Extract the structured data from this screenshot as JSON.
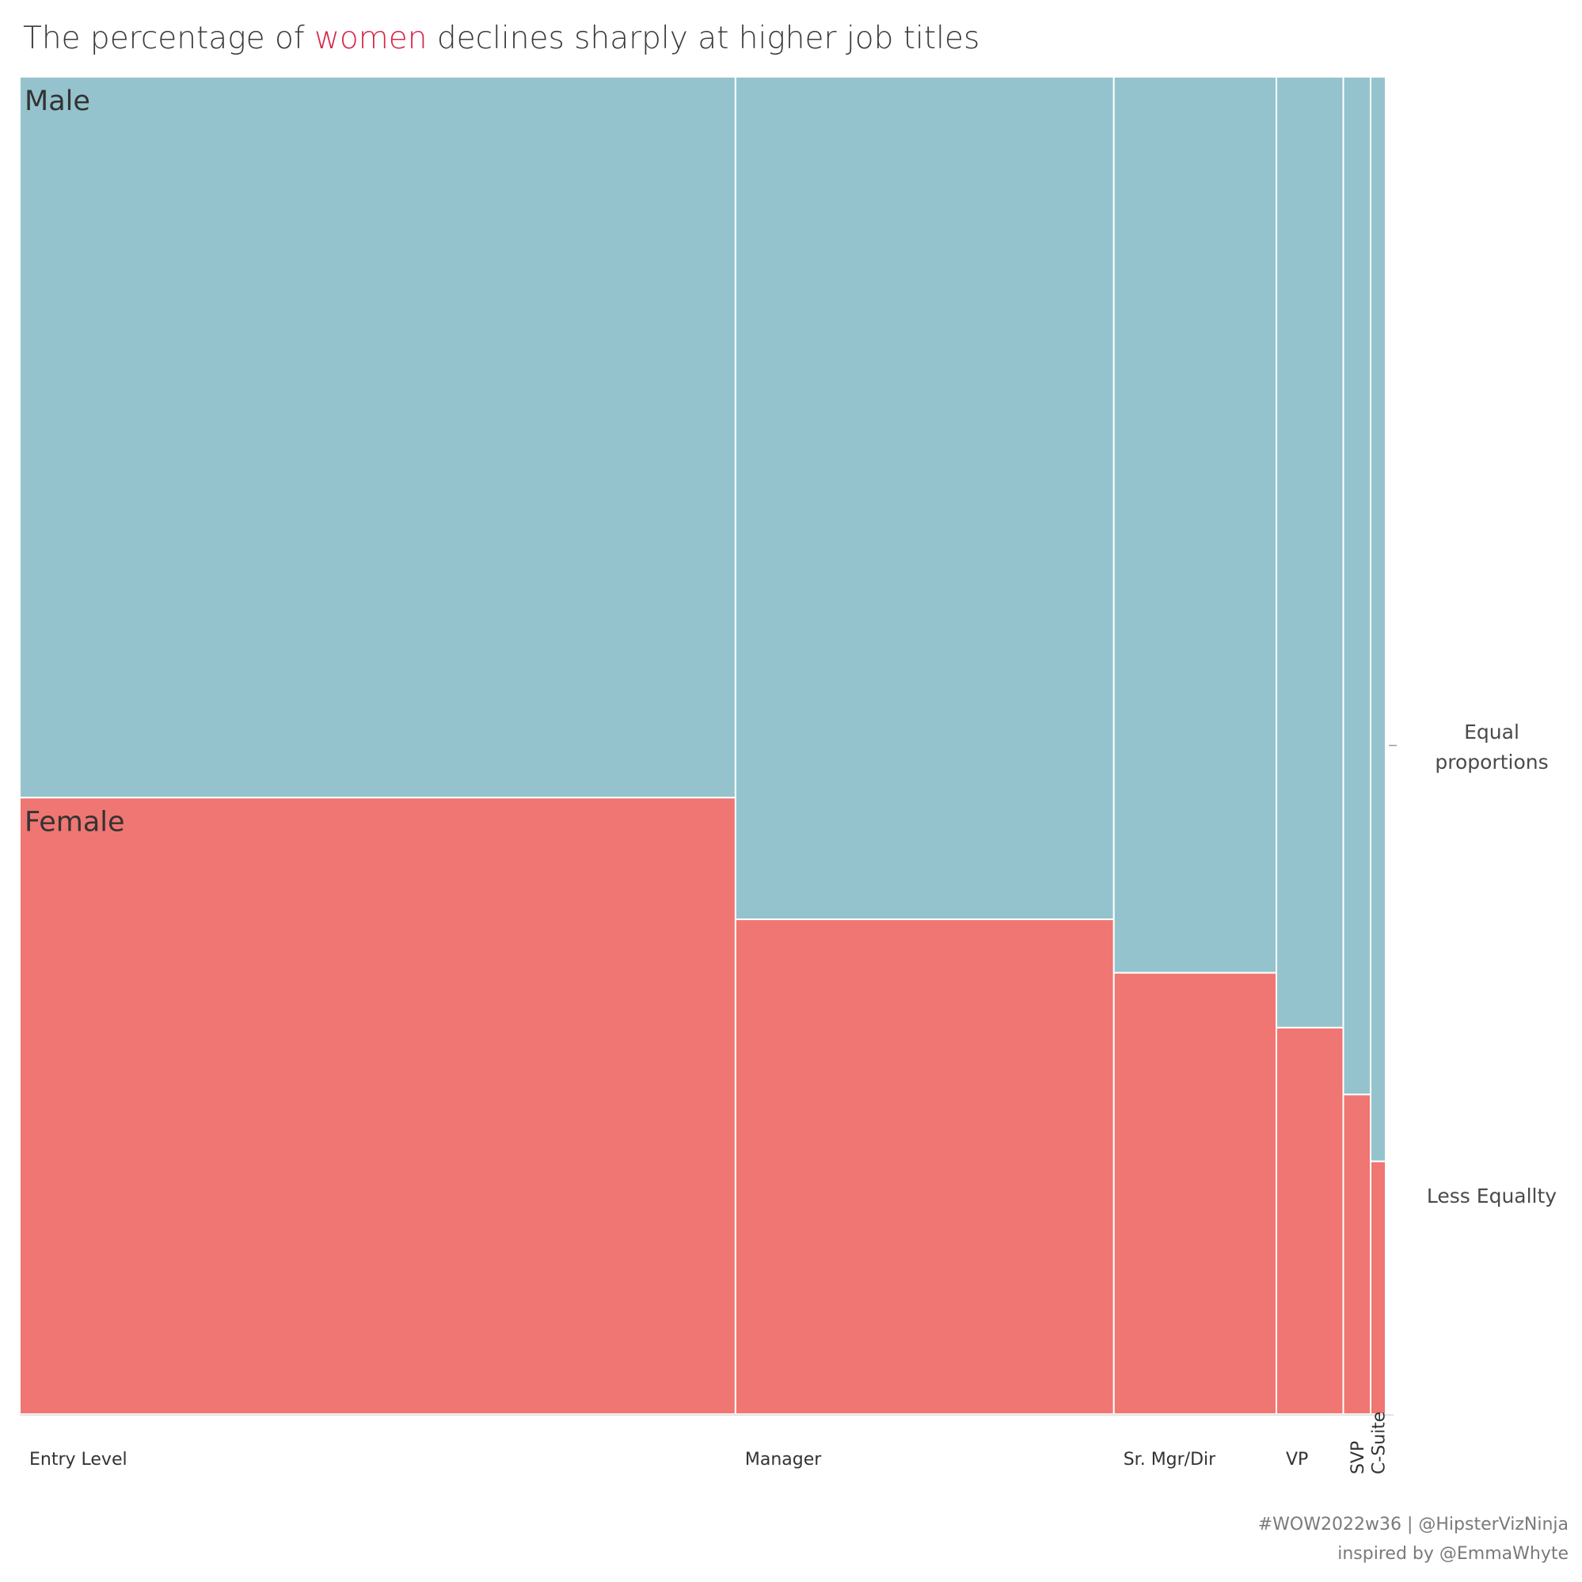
{
  "title": {
    "prefix": "The percentage of ",
    "highlight": "women",
    "suffix": " declines sharply at higher job titles"
  },
  "chart_data": {
    "type": "mosaic",
    "categories": [
      "Entry Level",
      "Manager",
      "Sr. Mgr/Dir",
      "VP",
      "SVP",
      "C-Suite"
    ],
    "category_weights": [
      52.4,
      27.7,
      11.9,
      4.9,
      2.0,
      1.1
    ],
    "series": [
      {
        "name": "Male",
        "values": [
          53.9,
          63.0,
          67.0,
          71.1,
          76.1,
          81.1
        ],
        "color": "#94c3cd"
      },
      {
        "name": "Female",
        "values": [
          46.1,
          37.0,
          33.0,
          28.9,
          23.9,
          18.9
        ],
        "color": "#ef7672"
      }
    ],
    "ylim": [
      0,
      100
    ],
    "reference_line": {
      "value": 50,
      "label_line1": "Equal",
      "label_line2": "proportions"
    },
    "annotation_lower": "Less Equallty"
  },
  "footer": {
    "line1": "#WOW2022w36 | @HipsterVizNinja",
    "line2": "inspired by @EmmaWhyte"
  }
}
